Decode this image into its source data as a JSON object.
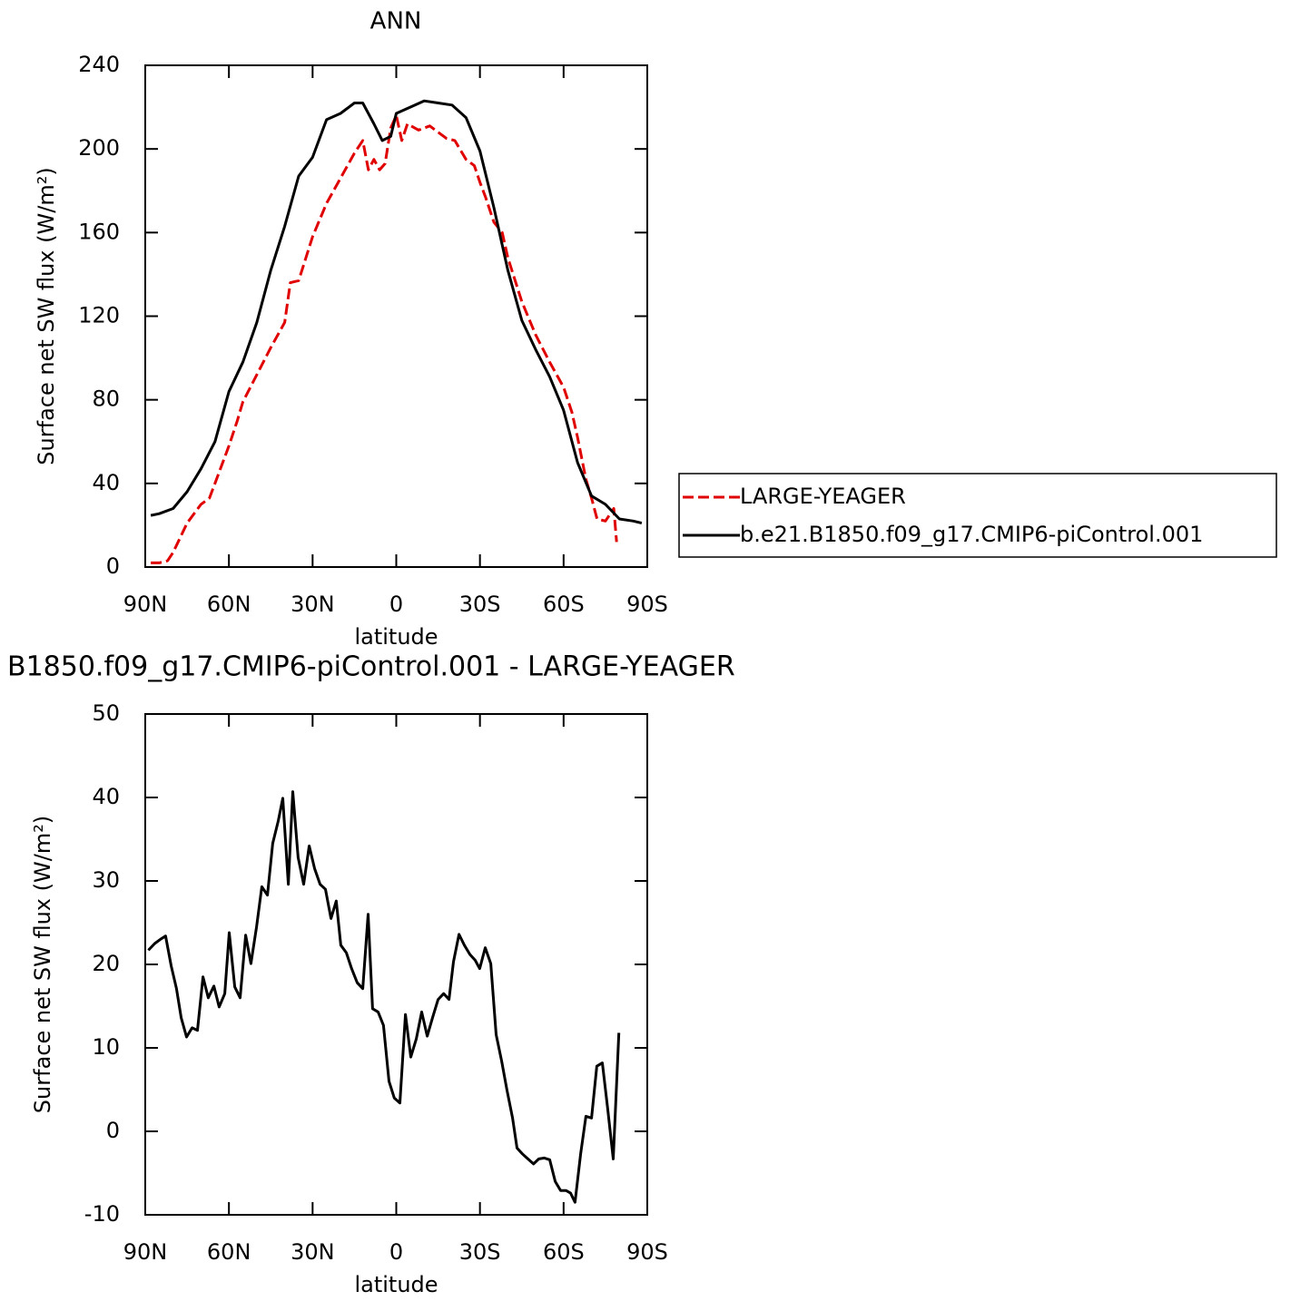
{
  "chart_data": [
    {
      "type": "line",
      "title": "ANN",
      "xlabel": "latitude",
      "ylabel": "Surface net SW flux (W/m²)",
      "xlim": [
        90,
        -90
      ],
      "ylim": [
        0,
        240
      ],
      "xticks": [
        {
          "value": 90,
          "label": "90N"
        },
        {
          "value": 60,
          "label": "60N"
        },
        {
          "value": 30,
          "label": "30N"
        },
        0,
        {
          "value": -30,
          "label": "30S"
        },
        {
          "value": -60,
          "label": "60S"
        },
        {
          "value": -90,
          "label": "90S"
        }
      ],
      "yticks": [
        0,
        40,
        80,
        120,
        160,
        200,
        240
      ],
      "legend": "right",
      "series": [
        {
          "name": "LARGE-YEAGER",
          "color": "#e00000",
          "linestyle": "dashed",
          "x": [
            88,
            85,
            82,
            80,
            75,
            70,
            67,
            65,
            60,
            57,
            55,
            50,
            45,
            40,
            38,
            35,
            30,
            25,
            20,
            15,
            12,
            10,
            8,
            6,
            4,
            2,
            0,
            -2,
            -4,
            -8,
            -12,
            -15,
            -18,
            -21,
            -25,
            -28,
            -30,
            -32,
            -35,
            -38,
            -40,
            -45,
            -50,
            -55,
            -60,
            -63,
            -65,
            -68,
            -70,
            -72,
            -75,
            -78,
            -79
          ],
          "values": [
            2,
            2,
            3,
            7,
            21,
            30,
            33,
            40,
            58,
            70,
            79,
            92,
            105,
            117,
            136,
            137,
            158,
            174,
            186,
            198,
            204,
            190,
            195,
            190,
            193,
            210,
            216,
            204,
            212,
            209,
            211,
            208,
            205,
            204,
            195,
            192,
            184,
            177,
            165,
            160,
            148,
            127,
            111,
            98,
            86,
            74,
            62,
            42,
            33,
            23,
            22,
            28,
            12
          ]
        },
        {
          "name": "b.e21.B1850.f09_g17.CMIP6-piControl.001",
          "color": "#000000",
          "linestyle": "solid",
          "x": [
            88,
            85,
            80,
            75,
            70,
            65,
            60,
            55,
            50,
            45,
            40,
            35,
            30,
            25,
            20,
            15,
            12,
            8,
            5,
            2,
            0,
            -5,
            -10,
            -15,
            -20,
            -25,
            -30,
            -35,
            -40,
            -45,
            -50,
            -55,
            -60,
            -65,
            -70,
            -75,
            -80,
            -85,
            -88
          ],
          "values": [
            24.7,
            25.5,
            28,
            36,
            47,
            60,
            84,
            98,
            117,
            142,
            163,
            187,
            196,
            214,
            217,
            222,
            222,
            212,
            204,
            206,
            217,
            220,
            223,
            222,
            221,
            215,
            199,
            172,
            142,
            118,
            104,
            91,
            75,
            50,
            34,
            30,
            23,
            22,
            21
          ]
        }
      ]
    },
    {
      "type": "line",
      "title": "B1850.f09_g17.CMIP6-piControl.001 - LARGE-YEAGER",
      "xlabel": "latitude",
      "ylabel": "Surface net SW flux (W/m²)",
      "xlim": [
        90,
        -90
      ],
      "ylim": [
        -10,
        50
      ],
      "xticks": [
        {
          "value": 90,
          "label": "90N"
        },
        {
          "value": 60,
          "label": "60N"
        },
        {
          "value": 30,
          "label": "30N"
        },
        0,
        {
          "value": -30,
          "label": "30S"
        },
        {
          "value": -60,
          "label": "60S"
        },
        {
          "value": -90,
          "label": "90S"
        }
      ],
      "yticks": [
        -10,
        0,
        10,
        20,
        30,
        40,
        50
      ],
      "series": [
        {
          "color": "#000000",
          "linestyle": "solid",
          "x": [
            88.9,
            86.6,
            84.6,
            82.7,
            80.7,
            78.8,
            77.1,
            75.2,
            73.2,
            71.3,
            69.3,
            67.4,
            65.4,
            63.5,
            61.5,
            59.9,
            57.9,
            56.0,
            54.0,
            52.1,
            50.1,
            48.2,
            46.2,
            44.3,
            42.3,
            40.7,
            38.7,
            37.1,
            35.2,
            33.2,
            31.2,
            29.3,
            27.3,
            25.4,
            23.4,
            21.5,
            19.9,
            17.9,
            16.0,
            14.0,
            12.0,
            10.1,
            8.5,
            6.5,
            4.6,
            2.6,
            0.7,
            -1.3,
            -3.3,
            -5.2,
            -7.2,
            -9.1,
            -11.1,
            -13.0,
            -15.0,
            -17.0,
            -18.9,
            -20.5,
            -22.5,
            -24.4,
            -26.4,
            -28.3,
            -29.9,
            -31.9,
            -33.9,
            -35.8,
            -37.8,
            -39.7,
            -41.7,
            -43.3,
            -45.2,
            -47.2,
            -49.2,
            -51.1,
            -53.1,
            -55.0,
            -57.0,
            -58.9,
            -60.9,
            -62.5,
            -64.1,
            -66.1,
            -68.0,
            -70.0,
            -71.9,
            -73.9,
            -75.8,
            -77.8,
            -79.8
          ],
          "values": [
            21.7,
            22.5,
            23.0,
            23.4,
            19.8,
            17.1,
            13.6,
            11.3,
            12.4,
            12.1,
            18.5,
            16.0,
            17.4,
            14.9,
            16.5,
            23.8,
            17.3,
            16.0,
            23.5,
            20.1,
            24.5,
            29.3,
            28.3,
            34.5,
            37.2,
            39.9,
            29.6,
            40.7,
            32.8,
            29.6,
            34.2,
            31.5,
            29.6,
            29.0,
            25.5,
            27.6,
            22.3,
            21.4,
            19.5,
            17.8,
            17.1,
            26.0,
            14.7,
            14.3,
            12.7,
            6.0,
            4.0,
            3.4,
            14.0,
            8.9,
            11.1,
            14.3,
            11.4,
            13.6,
            15.8,
            16.5,
            15.8,
            20.3,
            23.6,
            22.3,
            21.2,
            20.5,
            19.5,
            22.0,
            20.1,
            11.6,
            8.4,
            4.9,
            1.6,
            -2.0,
            -2.7,
            -3.3,
            -3.9,
            -3.3,
            -3.2,
            -3.4,
            -6.0,
            -7.1,
            -7.1,
            -7.4,
            -8.5,
            -2.7,
            1.8,
            1.6,
            7.8,
            8.2,
            2.7,
            -3.3,
            11.8
          ]
        }
      ]
    }
  ]
}
